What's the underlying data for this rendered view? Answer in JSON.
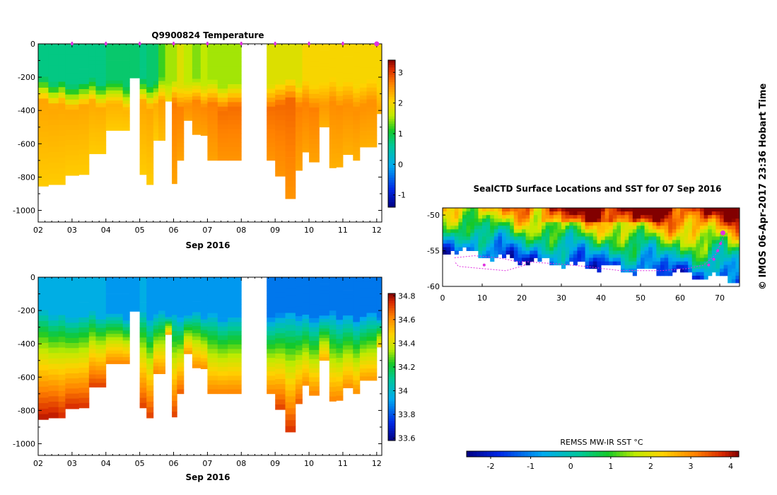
{
  "watermark": "© IMOS 06-Apr-2017 23:36 Hobart Time",
  "temperature_section": {
    "chart_data": {
      "type": "heatmap",
      "title": "Q9900824  Temperature",
      "xlabel": "Sep 2016",
      "ylabel": "",
      "x_ticks": [
        "02",
        "03",
        "04",
        "05",
        "06",
        "07",
        "08",
        "09",
        "10",
        "11",
        "12"
      ],
      "y_ticks": [
        0,
        -200,
        -400,
        -600,
        -800,
        -1000
      ],
      "ylim": [
        -1070,
        0
      ],
      "xlim": [
        2.0,
        12.15
      ],
      "colorbar_ticks": [
        3,
        2,
        1,
        0,
        -1
      ],
      "colorbar_range": [
        -1.4,
        3.4
      ],
      "profile_marker_days": [
        3.0,
        4.0,
        5.0,
        6.0,
        7.0,
        8.0,
        9.0,
        10.0,
        11.0,
        12.0
      ],
      "gap_days": [
        8.25,
        8.75
      ],
      "profiles_day": [
        2.0,
        2.3,
        2.6,
        2.8,
        3.2,
        3.5,
        3.7,
        4.0,
        4.5,
        4.7,
        5.0,
        5.2,
        5.4,
        5.55,
        5.75,
        5.95,
        6.1,
        6.3,
        6.55,
        6.8,
        7.0,
        7.3,
        7.6,
        8.0,
        8.75,
        9.0,
        9.3,
        9.6,
        9.8,
        10.0,
        10.3,
        10.6,
        10.8,
        11.0,
        11.3,
        11.5,
        11.7,
        12.0
      ],
      "profile_max_depth_m": [
        -855,
        -845,
        -845,
        -790,
        -785,
        -660,
        -660,
        -520,
        -520,
        -205,
        -785,
        -845,
        -580,
        -580,
        -345,
        -840,
        -700,
        -460,
        -545,
        -550,
        -700,
        -700,
        -700,
        0,
        -700,
        -795,
        -930,
        -760,
        -650,
        -710,
        -500,
        -745,
        -740,
        -665,
        -700,
        -620,
        -620,
        -420
      ],
      "surface_temperature_C": [
        0.7,
        0.7,
        0.7,
        0.7,
        0.7,
        0.7,
        0.7,
        0.8,
        0.8,
        0.8,
        0.7,
        0.8,
        0.8,
        1.2,
        1.5,
        1.5,
        1.8,
        1.6,
        1.4,
        1.6,
        1.5,
        1.5,
        1.5,
        1.5,
        1.8,
        1.8,
        1.8,
        1.8,
        2.0,
        2.0,
        2.0,
        2.0,
        2.0,
        2.0,
        2.0,
        2.0,
        2.0,
        2.0
      ],
      "deep_temperature_C": [
        2.3,
        2.3,
        2.3,
        2.3,
        2.3,
        2.3,
        2.3,
        2.3,
        2.3,
        2.3,
        2.3,
        2.3,
        2.3,
        2.4,
        2.5,
        2.6,
        2.6,
        2.6,
        2.6,
        2.6,
        2.6,
        2.7,
        2.7,
        2.7,
        2.7,
        2.7,
        2.7,
        2.6,
        2.6,
        2.6,
        2.5,
        2.5,
        2.5,
        2.5,
        2.5,
        2.5,
        2.5,
        2.5
      ]
    }
  },
  "salinity_section": {
    "chart_data": {
      "type": "heatmap",
      "title": "",
      "xlabel": "Sep 2016",
      "ylabel": "",
      "x_ticks": [
        "02",
        "03",
        "04",
        "05",
        "06",
        "07",
        "08",
        "09",
        "10",
        "11",
        "12"
      ],
      "y_ticks": [
        0,
        -200,
        -400,
        -600,
        -800,
        -1000
      ],
      "ylim": [
        -1070,
        0
      ],
      "xlim": [
        2.0,
        12.15
      ],
      "colorbar_ticks": [
        "34.8",
        "34.6",
        "34.4",
        "34.2",
        "34",
        "33.8",
        "33.6"
      ],
      "colorbar_range": [
        33.58,
        34.82
      ],
      "profiles_day": [
        2.0,
        2.3,
        2.6,
        2.8,
        3.2,
        3.5,
        3.7,
        4.0,
        4.5,
        4.7,
        5.0,
        5.2,
        5.4,
        5.55,
        5.75,
        5.95,
        6.1,
        6.3,
        6.55,
        6.8,
        7.0,
        7.3,
        7.6,
        8.0,
        8.75,
        9.0,
        9.3,
        9.6,
        9.8,
        10.0,
        10.3,
        10.6,
        10.8,
        11.0,
        11.3,
        11.5,
        11.7,
        12.0
      ],
      "profile_max_depth_m": [
        -855,
        -845,
        -845,
        -790,
        -785,
        -660,
        -660,
        -520,
        -520,
        -205,
        -785,
        -845,
        -580,
        -580,
        -345,
        -840,
        -700,
        -460,
        -545,
        -550,
        -700,
        -700,
        -700,
        0,
        -700,
        -795,
        -930,
        -760,
        -650,
        -710,
        -500,
        -745,
        -740,
        -665,
        -700,
        -620,
        -620,
        -420
      ],
      "surface_salinity": [
        33.95,
        33.95,
        33.95,
        33.95,
        33.95,
        33.95,
        33.95,
        33.9,
        33.9,
        33.9,
        33.95,
        33.9,
        33.9,
        33.9,
        33.9,
        33.9,
        33.9,
        33.9,
        33.9,
        33.9,
        33.9,
        33.9,
        33.9,
        33.9,
        33.85,
        33.85,
        33.85,
        33.85,
        33.85,
        33.85,
        33.85,
        33.85,
        33.85,
        33.85,
        33.85,
        33.85,
        33.85,
        33.85
      ],
      "deep_salinity": [
        34.78,
        34.78,
        34.75,
        34.75,
        34.74,
        34.72,
        34.72,
        34.62,
        34.62,
        34.55,
        34.72,
        34.72,
        34.62,
        34.6,
        34.55,
        34.72,
        34.68,
        34.58,
        34.6,
        34.6,
        34.62,
        34.62,
        34.62,
        34.62,
        34.62,
        34.72,
        34.74,
        34.68,
        34.6,
        34.62,
        34.55,
        34.62,
        34.62,
        34.6,
        34.6,
        34.58,
        34.58,
        34.5
      ]
    }
  },
  "sst_map": {
    "chart_data": {
      "type": "heatmap",
      "title": "SealCTD Surface Locations and SST for 07 Sep 2016",
      "x_ticks": [
        "0",
        "10",
        "20",
        "30",
        "40",
        "50",
        "60",
        "70"
      ],
      "y_ticks": [
        "-50",
        "-55",
        "-60"
      ],
      "xlim": [
        0,
        75
      ],
      "ylim": [
        -60,
        -49
      ],
      "track_lon": [
        3,
        8,
        14,
        19,
        21,
        16,
        10,
        4,
        3
      ],
      "track_lat": [
        -56.0,
        -55.7,
        -56.0,
        -56.5,
        -57.0,
        -57.8,
        -57.5,
        -57.2,
        -56.5
      ],
      "track2_lon": [
        20,
        28,
        36,
        45,
        55,
        62,
        66,
        69,
        71
      ],
      "track2_lat": [
        -56.5,
        -56.8,
        -57.2,
        -57.8,
        -57.8,
        -57.5,
        -57.0,
        -55.5,
        -53.0
      ],
      "seal_positions_lon": [
        10.5,
        67.2,
        68.5,
        69.5,
        70.2,
        70.8
      ],
      "seal_positions_lat": [
        -57.0,
        -57.0,
        -56.2,
        -55.0,
        -54.0,
        -52.5
      ],
      "colorbar_label": "REMSS MW-IR SST °C",
      "colorbar_ticks": [
        "-2",
        "-1",
        "0",
        "1",
        "2",
        "3",
        "4"
      ],
      "colorbar_range": [
        -2.6,
        4.2
      ]
    }
  }
}
